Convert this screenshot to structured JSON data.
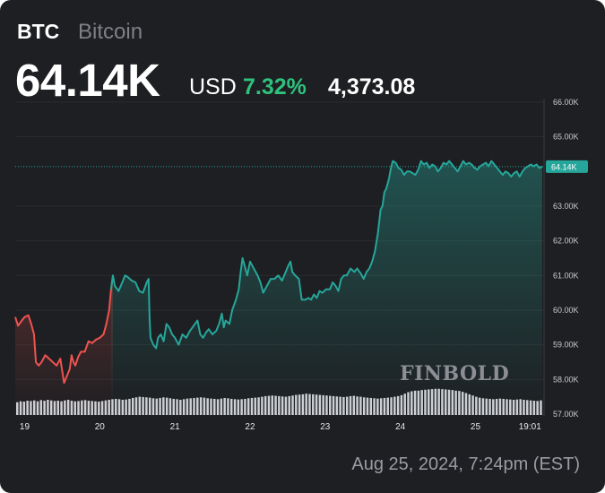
{
  "header": {
    "ticker": "BTC",
    "name": "Bitcoin",
    "price": "64.14K",
    "currency": "USD",
    "change_pct": "7.32%",
    "change_abs": "4,373.08"
  },
  "footer": {
    "timestamp": "Aug 25, 2024, 7:24pm (EST)"
  },
  "watermark": "FINBOLD",
  "colors": {
    "up": "#26a69a",
    "down": "#ef5350",
    "positive_text": "#2ec27e",
    "volume": "#cfd1d6",
    "background": "#1e1f22"
  },
  "chart_data": {
    "type": "area",
    "title": "",
    "xlabel": "",
    "ylabel": "",
    "x_ticks": [
      {
        "label": "19",
        "t": 0.5
      },
      {
        "label": "20",
        "t": 4.5
      },
      {
        "label": "21",
        "t": 8.5
      },
      {
        "label": "22",
        "t": 12.5
      },
      {
        "label": "23",
        "t": 16.5
      },
      {
        "label": "24",
        "t": 20.5
      },
      {
        "label": "25",
        "t": 24.5
      },
      {
        "label": "19:01",
        "t": 27.4
      }
    ],
    "y_ticks": [
      {
        "label": "66.00K",
        "value": 66.0
      },
      {
        "label": "65.00K",
        "value": 65.0
      },
      {
        "label": "63.00K",
        "value": 63.0
      },
      {
        "label": "62.00K",
        "value": 62.0
      },
      {
        "label": "61.00K",
        "value": 61.0
      },
      {
        "label": "60.00K",
        "value": 60.0
      },
      {
        "label": "59.00K",
        "value": 59.0
      },
      {
        "label": "58.00K",
        "value": 58.0
      },
      {
        "label": "57.00K",
        "value": 57.0
      }
    ],
    "ylim": [
      57.0,
      66.1
    ],
    "xlim": [
      0,
      28.15
    ],
    "last_price_label": "64.14K",
    "last_price": 64.14,
    "color_threshold_t": 5.1,
    "series": [
      {
        "points": [
          [
            0.0,
            59.8
          ],
          [
            0.15,
            59.55
          ],
          [
            0.35,
            59.7
          ],
          [
            0.5,
            59.8
          ],
          [
            0.7,
            59.85
          ],
          [
            0.85,
            59.6
          ],
          [
            1.0,
            59.3
          ],
          [
            1.1,
            58.5
          ],
          [
            1.25,
            58.4
          ],
          [
            1.4,
            58.5
          ],
          [
            1.6,
            58.7
          ],
          [
            1.8,
            58.6
          ],
          [
            2.0,
            58.5
          ],
          [
            2.2,
            58.4
          ],
          [
            2.4,
            58.6
          ],
          [
            2.6,
            57.9
          ],
          [
            2.75,
            58.1
          ],
          [
            2.9,
            58.3
          ],
          [
            3.0,
            58.7
          ],
          [
            3.1,
            58.5
          ],
          [
            3.2,
            58.4
          ],
          [
            3.35,
            58.65
          ],
          [
            3.5,
            58.8
          ],
          [
            3.7,
            58.8
          ],
          [
            3.9,
            59.1
          ],
          [
            4.1,
            59.05
          ],
          [
            4.3,
            59.15
          ],
          [
            4.5,
            59.2
          ],
          [
            4.7,
            59.3
          ],
          [
            4.85,
            59.6
          ],
          [
            5.0,
            60.0
          ],
          [
            5.1,
            60.6
          ],
          [
            5.2,
            61.0
          ],
          [
            5.3,
            60.7
          ],
          [
            5.5,
            60.55
          ],
          [
            5.7,
            60.8
          ],
          [
            5.85,
            61.0
          ],
          [
            6.0,
            60.95
          ],
          [
            6.2,
            60.85
          ],
          [
            6.4,
            60.8
          ],
          [
            6.6,
            60.55
          ],
          [
            6.8,
            60.5
          ],
          [
            7.0,
            60.8
          ],
          [
            7.1,
            60.9
          ],
          [
            7.15,
            59.8
          ],
          [
            7.2,
            59.2
          ],
          [
            7.35,
            59.0
          ],
          [
            7.5,
            58.9
          ],
          [
            7.6,
            59.2
          ],
          [
            7.75,
            59.3
          ],
          [
            7.9,
            59.1
          ],
          [
            8.05,
            59.6
          ],
          [
            8.2,
            59.5
          ],
          [
            8.35,
            59.3
          ],
          [
            8.5,
            59.2
          ],
          [
            8.7,
            59.0
          ],
          [
            8.9,
            59.3
          ],
          [
            9.1,
            59.2
          ],
          [
            9.3,
            59.4
          ],
          [
            9.5,
            59.55
          ],
          [
            9.7,
            59.7
          ],
          [
            9.85,
            59.3
          ],
          [
            10.0,
            59.2
          ],
          [
            10.15,
            59.35
          ],
          [
            10.3,
            59.45
          ],
          [
            10.5,
            59.3
          ],
          [
            10.7,
            59.4
          ],
          [
            10.85,
            59.6
          ],
          [
            11.0,
            59.9
          ],
          [
            11.1,
            59.5
          ],
          [
            11.2,
            59.7
          ],
          [
            11.4,
            59.6
          ],
          [
            11.55,
            60.0
          ],
          [
            11.75,
            60.3
          ],
          [
            11.9,
            60.6
          ],
          [
            12.0,
            61.1
          ],
          [
            12.1,
            61.5
          ],
          [
            12.2,
            61.3
          ],
          [
            12.35,
            61.0
          ],
          [
            12.5,
            61.4
          ],
          [
            12.7,
            61.2
          ],
          [
            12.9,
            61.0
          ],
          [
            13.05,
            60.8
          ],
          [
            13.2,
            60.5
          ],
          [
            13.4,
            60.7
          ],
          [
            13.6,
            60.9
          ],
          [
            13.8,
            60.9
          ],
          [
            14.0,
            61.0
          ],
          [
            14.2,
            60.85
          ],
          [
            14.4,
            61.1
          ],
          [
            14.55,
            61.3
          ],
          [
            14.65,
            61.4
          ],
          [
            14.75,
            61.1
          ],
          [
            14.9,
            61.0
          ],
          [
            15.1,
            60.9
          ],
          [
            15.25,
            60.3
          ],
          [
            15.45,
            60.3
          ],
          [
            15.6,
            60.35
          ],
          [
            15.75,
            60.3
          ],
          [
            15.9,
            60.45
          ],
          [
            16.05,
            60.35
          ],
          [
            16.2,
            60.55
          ],
          [
            16.35,
            60.5
          ],
          [
            16.55,
            60.6
          ],
          [
            16.75,
            60.6
          ],
          [
            16.9,
            60.8
          ],
          [
            17.05,
            60.7
          ],
          [
            17.2,
            60.55
          ],
          [
            17.35,
            60.9
          ],
          [
            17.5,
            61.0
          ],
          [
            17.65,
            61.0
          ],
          [
            17.85,
            61.2
          ],
          [
            18.05,
            61.1
          ],
          [
            18.2,
            61.2
          ],
          [
            18.4,
            61.05
          ],
          [
            18.55,
            60.9
          ],
          [
            18.7,
            61.1
          ],
          [
            18.85,
            61.2
          ],
          [
            19.0,
            61.4
          ],
          [
            19.15,
            61.7
          ],
          [
            19.3,
            62.2
          ],
          [
            19.45,
            62.9
          ],
          [
            19.55,
            63.0
          ],
          [
            19.65,
            63.4
          ],
          [
            19.75,
            63.5
          ],
          [
            19.9,
            63.8
          ],
          [
            20.0,
            64.1
          ],
          [
            20.1,
            64.3
          ],
          [
            20.25,
            64.25
          ],
          [
            20.4,
            64.1
          ],
          [
            20.55,
            64.05
          ],
          [
            20.7,
            63.9
          ],
          [
            20.85,
            64.0
          ],
          [
            21.0,
            64.0
          ],
          [
            21.15,
            63.95
          ],
          [
            21.3,
            63.9
          ],
          [
            21.45,
            64.05
          ],
          [
            21.6,
            64.3
          ],
          [
            21.75,
            64.2
          ],
          [
            21.9,
            64.25
          ],
          [
            22.05,
            64.1
          ],
          [
            22.2,
            64.2
          ],
          [
            22.35,
            64.15
          ],
          [
            22.5,
            64.0
          ],
          [
            22.65,
            64.1
          ],
          [
            22.8,
            64.25
          ],
          [
            22.95,
            64.2
          ],
          [
            23.1,
            64.3
          ],
          [
            23.25,
            64.2
          ],
          [
            23.4,
            64.1
          ],
          [
            23.55,
            64.0
          ],
          [
            23.7,
            64.15
          ],
          [
            23.85,
            64.3
          ],
          [
            24.0,
            64.2
          ],
          [
            24.15,
            64.25
          ],
          [
            24.3,
            64.2
          ],
          [
            24.45,
            64.1
          ],
          [
            24.6,
            64.05
          ],
          [
            24.75,
            64.15
          ],
          [
            24.9,
            64.2
          ],
          [
            25.05,
            64.25
          ],
          [
            25.2,
            64.15
          ],
          [
            25.35,
            64.3
          ],
          [
            25.5,
            64.2
          ],
          [
            25.65,
            64.1
          ],
          [
            25.8,
            64.0
          ],
          [
            25.95,
            63.9
          ],
          [
            26.1,
            64.0
          ],
          [
            26.25,
            63.95
          ],
          [
            26.4,
            63.85
          ],
          [
            26.55,
            63.95
          ],
          [
            26.7,
            64.0
          ],
          [
            26.85,
            63.85
          ],
          [
            27.0,
            64.0
          ],
          [
            27.15,
            64.1
          ],
          [
            27.3,
            64.15
          ],
          [
            27.45,
            64.2
          ],
          [
            27.6,
            64.15
          ],
          [
            27.75,
            64.2
          ],
          [
            27.9,
            64.1
          ],
          [
            28.05,
            64.14
          ]
        ]
      }
    ],
    "volume": [
      0.42,
      0.45,
      0.44,
      0.47,
      0.46,
      0.48,
      0.45,
      0.49,
      0.47,
      0.5,
      0.48,
      0.46,
      0.47,
      0.45,
      0.48,
      0.5,
      0.47,
      0.45,
      0.46,
      0.48,
      0.49,
      0.47,
      0.46,
      0.45,
      0.44,
      0.46,
      0.48,
      0.5,
      0.52,
      0.53,
      0.52,
      0.5,
      0.51,
      0.53,
      0.56,
      0.58,
      0.6,
      0.59,
      0.58,
      0.57,
      0.55,
      0.54,
      0.56,
      0.58,
      0.57,
      0.55,
      0.53,
      0.52,
      0.5,
      0.52,
      0.54,
      0.55,
      0.56,
      0.57,
      0.58,
      0.57,
      0.55,
      0.54,
      0.53,
      0.52,
      0.54,
      0.56,
      0.55,
      0.53,
      0.52,
      0.51,
      0.52,
      0.53,
      0.55,
      0.56,
      0.57,
      0.58,
      0.6,
      0.62,
      0.63,
      0.64,
      0.63,
      0.62,
      0.61,
      0.6,
      0.62,
      0.64,
      0.66,
      0.67,
      0.68,
      0.7,
      0.69,
      0.68,
      0.67,
      0.66,
      0.65,
      0.64,
      0.63,
      0.62,
      0.61,
      0.6,
      0.59,
      0.6,
      0.62,
      0.63,
      0.61,
      0.6,
      0.58,
      0.57,
      0.56,
      0.55,
      0.54,
      0.55,
      0.56,
      0.57,
      0.58,
      0.6,
      0.62,
      0.65,
      0.7,
      0.75,
      0.78,
      0.8,
      0.8,
      0.82,
      0.83,
      0.84,
      0.85,
      0.86,
      0.86,
      0.85,
      0.84,
      0.83,
      0.82,
      0.8,
      0.79,
      0.76,
      0.72,
      0.68,
      0.64,
      0.6,
      0.57,
      0.55,
      0.54,
      0.53,
      0.52,
      0.53,
      0.54,
      0.53,
      0.52,
      0.51,
      0.5,
      0.51,
      0.52,
      0.5,
      0.49,
      0.48,
      0.47,
      0.46,
      0.48
    ]
  }
}
